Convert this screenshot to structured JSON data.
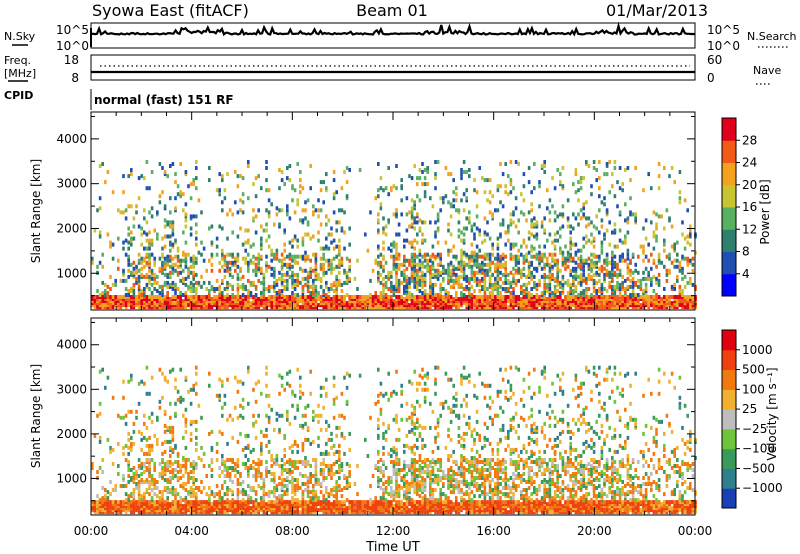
{
  "header": {
    "station": "Syowa East (fitACF)",
    "beam": "Beam 01",
    "date": "01/Mar/2013"
  },
  "strips": {
    "nsky_label": "N.Sky",
    "nsky_ticks": [
      "10^5",
      "10^0"
    ],
    "nsearch_label": "N.Search",
    "nsearch_ticks": [
      "10^5",
      "10^0"
    ],
    "freq_label_1": "Freq.",
    "freq_label_2": "[MHz]",
    "freq_ticks": [
      "18",
      "8"
    ],
    "nave_label": "Nave",
    "nave_ticks": [
      "60",
      "0"
    ],
    "cpid_label": "CPID",
    "cpid_text": "normal (fast) 151 RF"
  },
  "chart_data": [
    {
      "type": "heatmap",
      "name": "power",
      "ylabel": "Slant Range [km]",
      "ylim": [
        180,
        4600
      ],
      "yticks": [
        "4000",
        "3000",
        "2000",
        "1000"
      ],
      "xlim": [
        "00:00",
        "24:00"
      ],
      "colorbar": {
        "label": "Power [dB]",
        "ticks": [
          "28",
          "24",
          "20",
          "16",
          "12",
          "8",
          "4"
        ],
        "colors": [
          "#0000ff",
          "#1f4fb0",
          "#2f7f6f",
          "#58b060",
          "#c9c431",
          "#f3a21e",
          "#f15a17",
          "#e0001b"
        ]
      }
    },
    {
      "type": "heatmap",
      "name": "velocity",
      "ylabel": "Slant Range [km]",
      "ylim": [
        180,
        4600
      ],
      "yticks": [
        "4000",
        "3000",
        "2000",
        "1000"
      ],
      "xlim": [
        "00:00",
        "24:00"
      ],
      "colorbar": {
        "label": "Velocity [m s⁻¹]",
        "ticks": [
          "1000",
          "500",
          "100",
          "25",
          "−25",
          "−100",
          "−500",
          "−1000"
        ],
        "colors": [
          "#1a40b8",
          "#2f7f8f",
          "#3a9a5a",
          "#6ec43a",
          "#bdbdbd",
          "#f0b030",
          "#f07a10",
          "#f04010",
          "#e00010"
        ]
      }
    }
  ],
  "xaxis": {
    "ticks": [
      "00:00",
      "04:00",
      "08:00",
      "12:00",
      "16:00",
      "20:00",
      "00:00"
    ],
    "label": "Time UT"
  }
}
